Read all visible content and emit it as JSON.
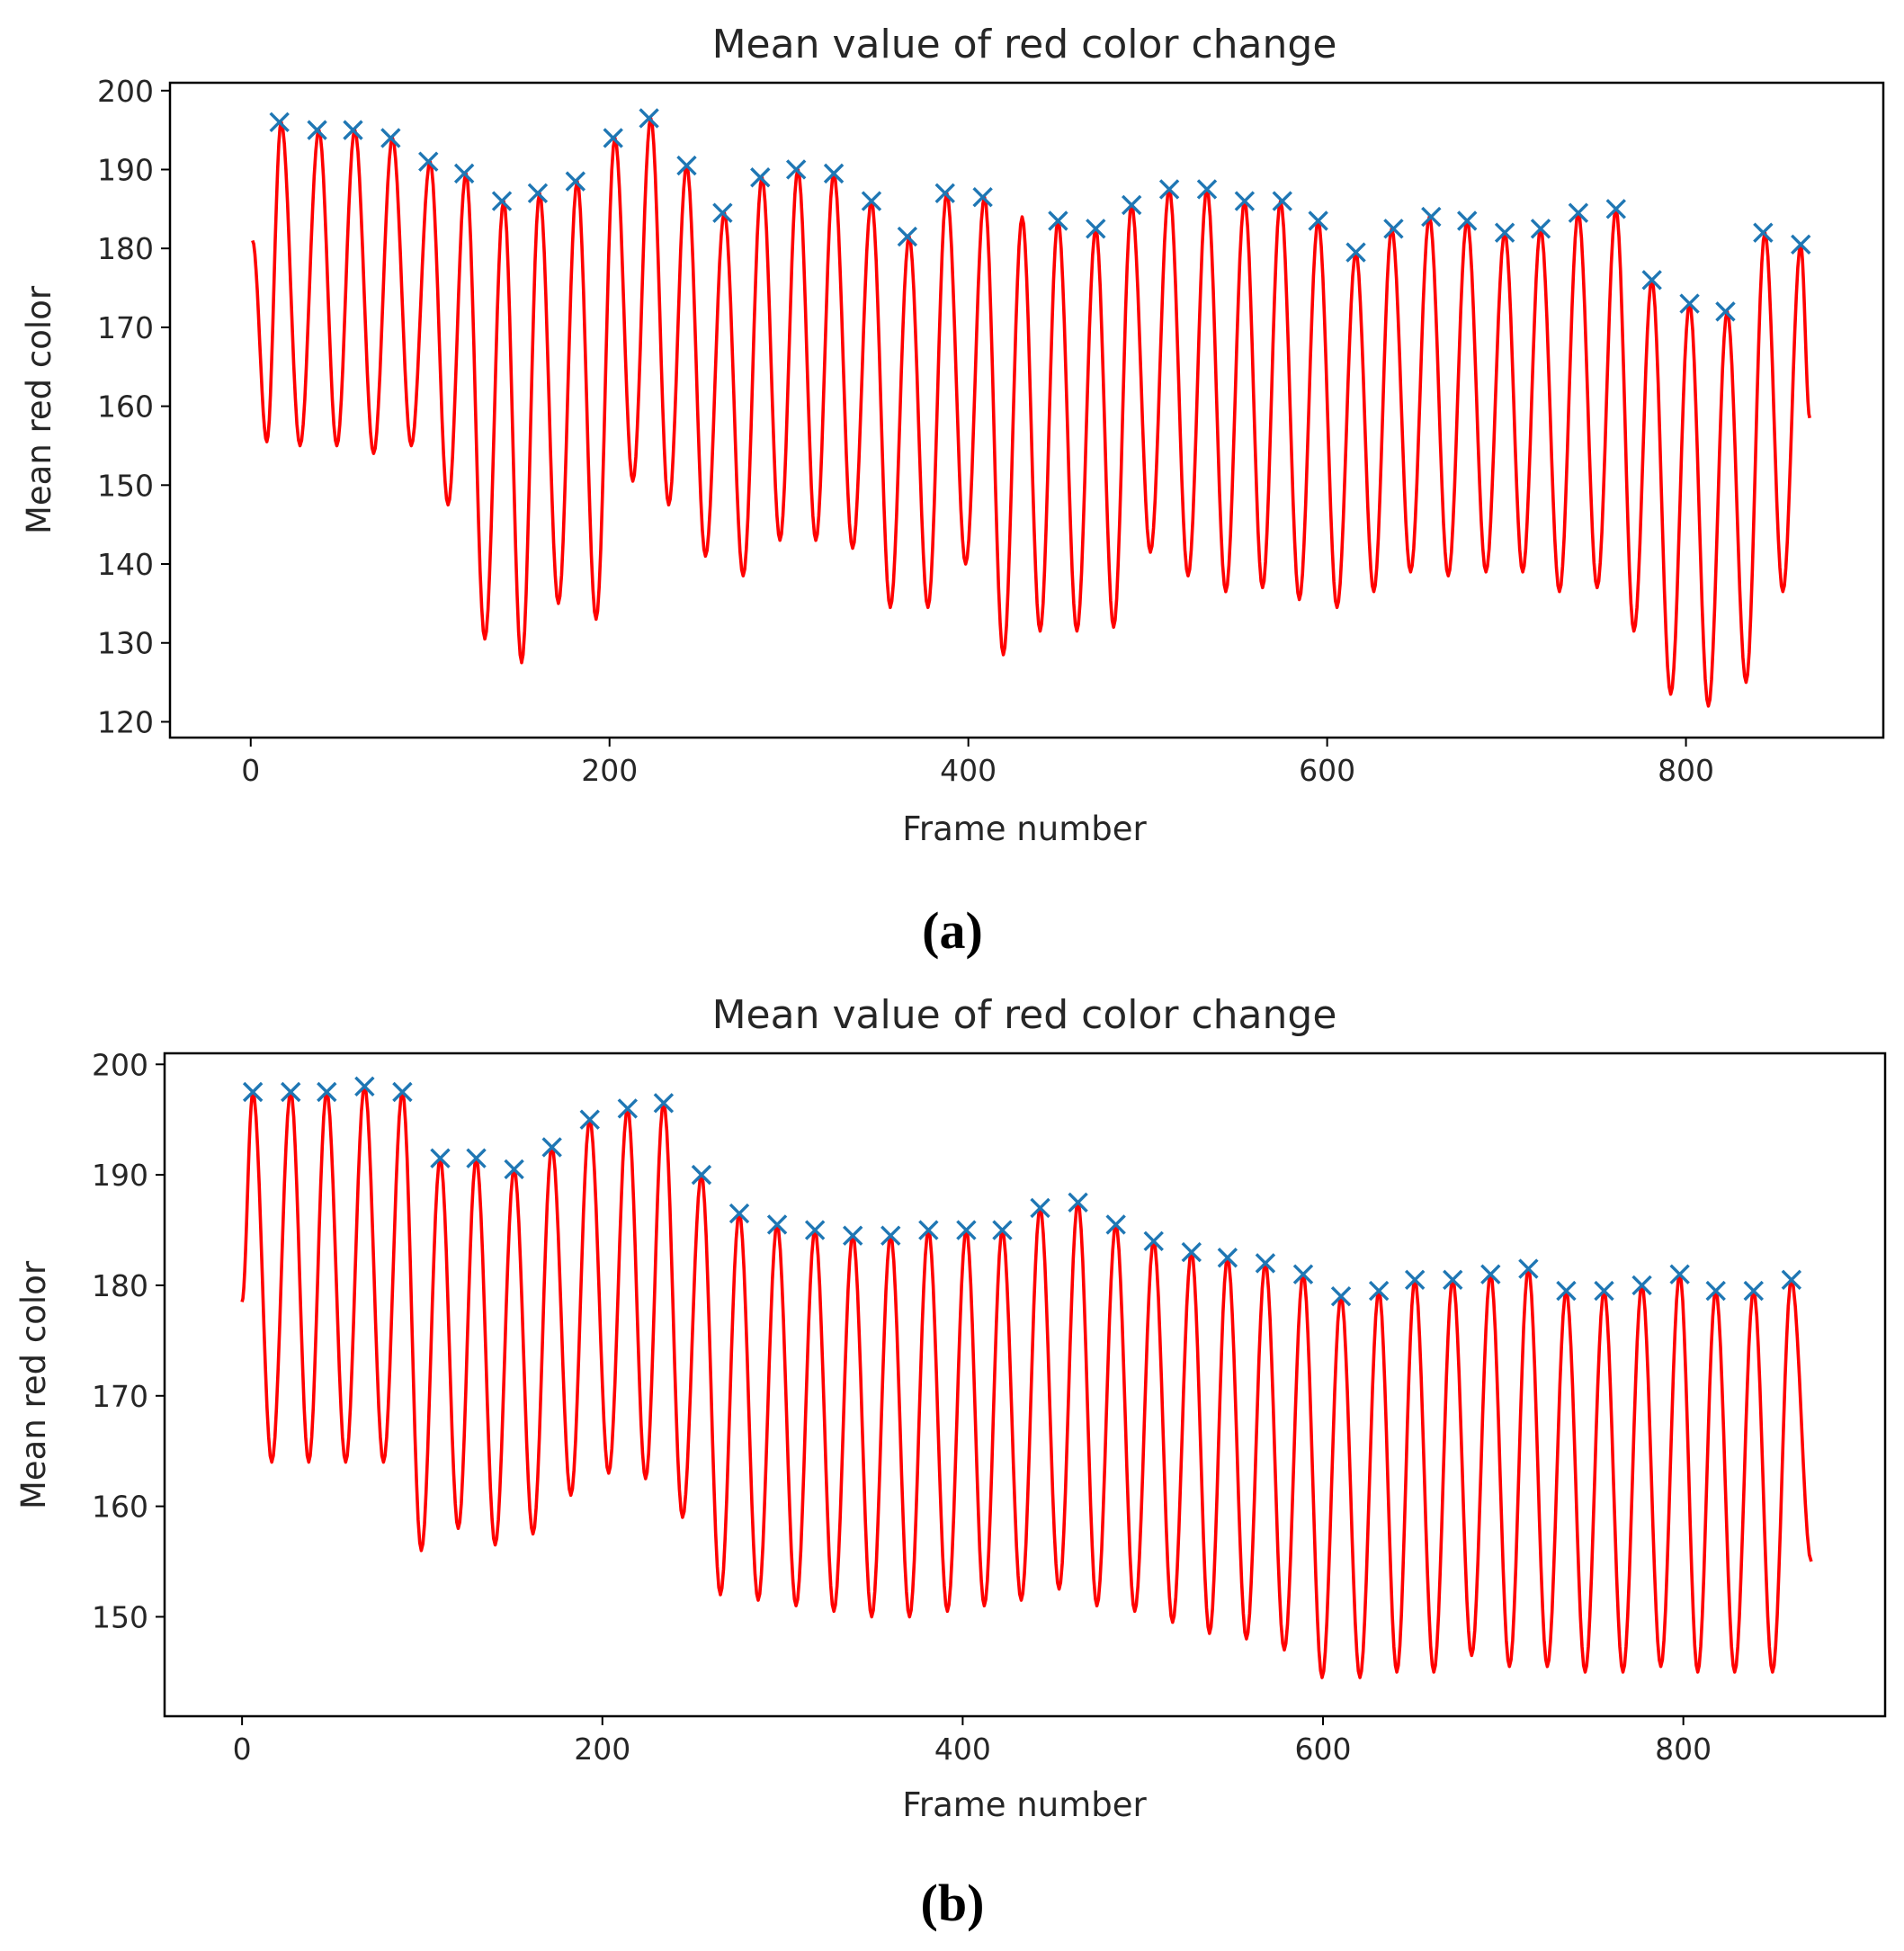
{
  "colors": {
    "signal": "#ff0000",
    "peak": "#1f77b4",
    "axes": "#000000",
    "text": "#262626"
  },
  "chart_data": [
    {
      "panel": "(a)",
      "type": "line",
      "title": "Mean value of red color change",
      "xlabel": "Frame number",
      "ylabel": "Mean red color",
      "xlim": [
        -45,
        910
      ],
      "ylim": [
        118,
        201
      ],
      "xticks": [
        0,
        200,
        400,
        600,
        800
      ],
      "yticks": [
        120,
        130,
        140,
        150,
        160,
        170,
        180,
        190,
        200
      ],
      "grid": false,
      "series": [
        {
          "name": "signal",
          "peaks_x": [
            1,
            17,
            38,
            58,
            79,
            100,
            120,
            141,
            161,
            182,
            203,
            223,
            243,
            264,
            285,
            305,
            325,
            346,
            367,
            388,
            409,
            430,
            450,
            471,
            491,
            512,
            533,
            554,
            574,
            595,
            616,
            636,
            657,
            678,
            699,
            719,
            740,
            761,
            781,
            802,
            823,
            844,
            864
          ],
          "peaks_y": [
            181,
            196,
            195,
            195,
            194,
            191,
            189.5,
            186,
            187,
            188.5,
            194,
            196.5,
            190.5,
            184.5,
            189,
            190,
            189.5,
            186,
            181.5,
            187,
            186.5,
            184,
            183.5,
            182.5,
            185.5,
            187.5,
            187.5,
            186,
            186,
            183.5,
            179.5,
            182.5,
            184,
            183.5,
            182,
            182.5,
            184.5,
            185,
            176,
            173,
            172,
            182,
            180.5
          ],
          "troughs_y": [
            155.5,
            155,
            155,
            154,
            155,
            147.5,
            130.5,
            127.5,
            135,
            133,
            150.5,
            147.5,
            141,
            138.5,
            143,
            143,
            142,
            134.5,
            134.5,
            140,
            128.5,
            131.5,
            131.5,
            132,
            141.5,
            138.5,
            136.5,
            137,
            135.5,
            134.5,
            136.5,
            139,
            138.5,
            139,
            139,
            136.5,
            137,
            131.5,
            123.5,
            122,
            125,
            136.5
          ],
          "end_x": 869,
          "end_y": 158.5
        },
        {
          "name": "peaks",
          "x": [
            16,
            37,
            57,
            78,
            99,
            119,
            140,
            160,
            181,
            202,
            222,
            243,
            263,
            284,
            304,
            325,
            346,
            366,
            387,
            408,
            450,
            471,
            491,
            512,
            533,
            554,
            575,
            595,
            616,
            637,
            658,
            678,
            699,
            719,
            740,
            761,
            781,
            802,
            822,
            843,
            864
          ],
          "y": [
            196,
            195,
            195,
            194,
            191,
            189.5,
            186,
            187,
            188.5,
            194,
            196.5,
            190.5,
            184.5,
            189,
            190,
            189.5,
            186,
            181.5,
            187,
            186.5,
            183.5,
            182.5,
            185.5,
            187.5,
            187.5,
            186,
            186,
            183.5,
            179.5,
            182.5,
            184,
            183.5,
            182,
            182.5,
            184.5,
            185,
            176,
            173,
            172,
            182,
            180.5
          ]
        }
      ]
    },
    {
      "panel": "(b)",
      "type": "line",
      "title": "Mean value of red color change",
      "xlabel": "Frame number",
      "ylabel": "Mean red color",
      "xlim": [
        -43,
        912
      ],
      "ylim": [
        141,
        201
      ],
      "xticks": [
        0,
        200,
        400,
        600,
        800
      ],
      "yticks": [
        150,
        160,
        170,
        180,
        190,
        200
      ],
      "grid": false,
      "series": [
        {
          "name": "signal",
          "start_y": 178.5,
          "peaks_x": [
            6,
            27,
            47,
            68,
            89,
            110,
            130,
            151,
            172,
            193,
            214,
            234,
            255,
            276,
            297,
            318,
            339,
            360,
            381,
            402,
            422,
            443,
            464,
            485,
            506,
            527,
            547,
            568,
            589,
            610,
            631,
            651,
            672,
            693,
            714,
            735,
            756,
            777,
            798,
            818,
            839,
            860
          ],
          "peaks_y": [
            197.5,
            197.5,
            197.5,
            198,
            197.5,
            191.5,
            191.5,
            190.5,
            192.5,
            195,
            196,
            196.5,
            190,
            186.5,
            185.5,
            185,
            184.5,
            184.5,
            185,
            185,
            185,
            187,
            187.5,
            185.5,
            184,
            183,
            182.5,
            182,
            181,
            179,
            179.5,
            180.5,
            180.5,
            181,
            181.5,
            179.5,
            179.5,
            180,
            181,
            179.5,
            179.5,
            180.5
          ],
          "troughs_y": [
            164,
            164,
            164,
            164,
            156,
            158,
            156.5,
            157.5,
            161,
            163,
            162.5,
            159,
            152,
            151.5,
            151,
            150.5,
            150,
            150,
            150.5,
            151,
            151.5,
            152.5,
            151,
            150.5,
            149.5,
            148.5,
            148,
            147,
            144.5,
            144.5,
            145,
            145,
            146.5,
            145.5,
            145.5,
            145,
            145,
            145.5,
            145,
            145,
            145,
            145
          ],
          "end_x": 871,
          "end_y": 155
        },
        {
          "name": "peaks",
          "x": [
            6,
            27,
            47,
            68,
            89,
            110,
            130,
            151,
            172,
            193,
            214,
            234,
            255,
            276,
            297,
            318,
            339,
            360,
            381,
            402,
            422,
            443,
            464,
            485,
            506,
            527,
            547,
            568,
            589,
            610,
            631,
            651,
            672,
            693,
            714,
            735,
            756,
            777,
            798,
            818,
            839,
            860
          ],
          "y": [
            197.5,
            197.5,
            197.5,
            198,
            197.5,
            191.5,
            191.5,
            190.5,
            192.5,
            195,
            196,
            196.5,
            190,
            186.5,
            185.5,
            185,
            184.5,
            184.5,
            185,
            185,
            185,
            187,
            187.5,
            185.5,
            184,
            183,
            182.5,
            182,
            181,
            179,
            179.5,
            180.5,
            180.5,
            181,
            181.5,
            179.5,
            179.5,
            180,
            181,
            179.5,
            179.5,
            180.5
          ]
        }
      ]
    }
  ]
}
